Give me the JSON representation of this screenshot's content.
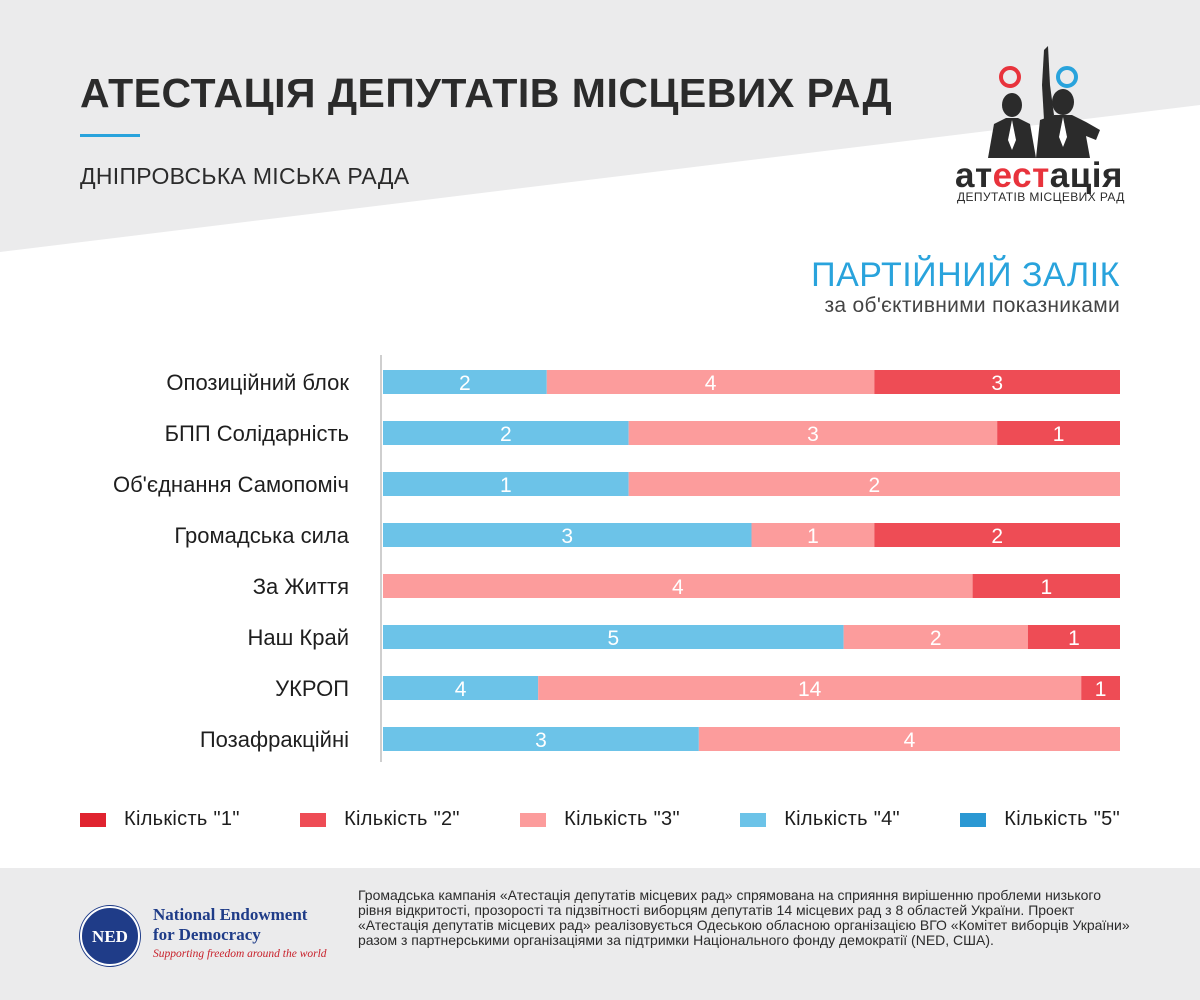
{
  "header": {
    "title": "АТЕСТАЦІЯ ДЕПУТАТІВ МІСЦЕВИХ РАД",
    "subtitle": "ДНІПРОВСЬКА МІСЬКА РАДА"
  },
  "logo": {
    "word_start": "ат",
    "word_mid": "ест",
    "word_end": "ація",
    "subtitle": "ДЕПУТАТІВ МІСЦЕВИХ РАД",
    "icon": "two-deputies-icon"
  },
  "section": {
    "title": "ПАРТІЙНИЙ ЗАЛІК",
    "subtitle": "за об'єктивними показниками"
  },
  "chart_data": {
    "type": "bar",
    "orientation": "horizontal",
    "stacked": true,
    "normalized": true,
    "categories": [
      "Опозиційний блок",
      "БПП Солідарність",
      "Об'єднання Самопоміч",
      "Громадська сила",
      "За Життя",
      "Наш Край",
      "УКРОП",
      "Позафракційні"
    ],
    "series": [
      {
        "name": "Кількість \"1\"",
        "color": "#e0232f",
        "values": [
          0,
          0,
          0,
          0,
          0,
          0,
          0,
          0
        ]
      },
      {
        "name": "Кількість \"2\"",
        "color": "#ee4c55",
        "values": [
          3,
          1,
          0,
          2,
          1,
          1,
          1,
          0
        ]
      },
      {
        "name": "Кількість \"3\"",
        "color": "#fc9c9c",
        "values": [
          4,
          3,
          2,
          1,
          4,
          2,
          14,
          4
        ]
      },
      {
        "name": "Кількість \"4\"",
        "color": "#6cc3e8",
        "values": [
          2,
          2,
          1,
          3,
          0,
          5,
          4,
          3
        ]
      },
      {
        "name": "Кількість \"5\"",
        "color": "#2a98d3",
        "values": [
          0,
          0,
          0,
          0,
          0,
          0,
          0,
          0
        ]
      }
    ],
    "stack_order_left_to_right": [
      "Кількість \"5\"",
      "Кількість \"4\"",
      "Кількість \"3\"",
      "Кількість \"2\"",
      "Кількість \"1\""
    ],
    "legend_position": "bottom",
    "grid": false
  },
  "footer": {
    "seal_text": "NED",
    "ned_line1": "National Endowment",
    "ned_line2": "for Democracy",
    "ned_tagline": "Supporting freedom around the world",
    "description": "Громадська кампанія «Атестація депутатів місцевих рад» спрямована на сприяння вирішенню проблеми низького рівня відкритості, прозорості та підзвітності виборцям депутатів 14 місцевих рад з 8 областей України. Проект «Атестація депутатів місцевих рад» реалізовується Одеською обласною організацією ВГО «Комітет виборців України» разом з партнерськими організаціями за підтримки Національного фонду демократії (NED, США)."
  }
}
